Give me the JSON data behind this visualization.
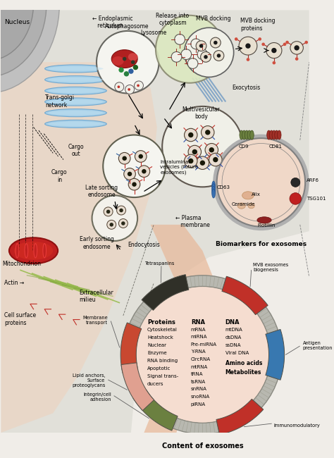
{
  "bg_color": "#f0ede8",
  "cell_bg": "#e8c8b8",
  "nucleus_gray": "#b8b8b8",
  "er_blue": "#8ec8e8",
  "content_title": "Content of exosomes",
  "biomarker_title": "Biomarkers for exosomes",
  "proteins": [
    "Cytoskeletal",
    "Heatshock",
    "Nuclear",
    "Enzyme",
    "RNA binding",
    "Apoptotic",
    "Signal trans-",
    "ducers"
  ],
  "rna": [
    "mRNA",
    "miRNA",
    "Pre-miRNA",
    "Y-RNA",
    "CircRNA",
    "mtRNA",
    "tRNA",
    "tsRNA",
    "snRNA",
    "snoRNA",
    "piRNA"
  ],
  "dna": [
    "mtDNA",
    "dsDNA",
    "ssDNA",
    "Viral DNA"
  ],
  "seg_green": "#6b8040",
  "seg_red": "#c03028",
  "seg_blue": "#3878b0",
  "seg_dark": "#383830",
  "seg_pink": "#d89080",
  "seg_orange_red": "#c84830"
}
